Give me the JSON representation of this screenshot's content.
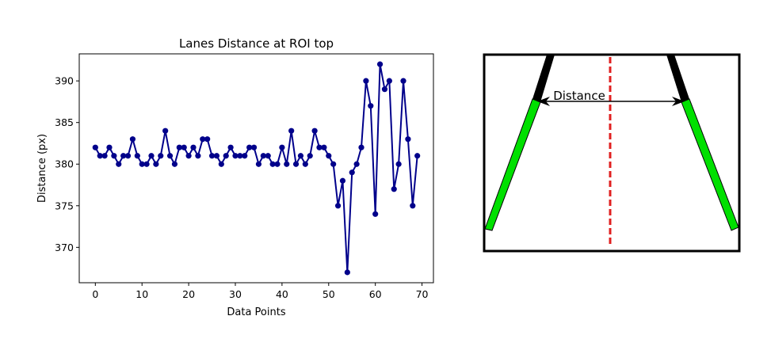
{
  "chart_data": [
    {
      "type": "line",
      "title": "Lanes Distance at ROI top",
      "xlabel": "Data Points",
      "ylabel": "Distance (px)",
      "xlim": [
        -3.45,
        72.45
      ],
      "ylim": [
        365.75,
        393.25
      ],
      "xticks": [
        0,
        10,
        20,
        30,
        40,
        50,
        60,
        70
      ],
      "yticks": [
        370,
        375,
        380,
        385,
        390
      ],
      "grid": false,
      "line_color": "#00008b",
      "marker": "circle",
      "series": [
        {
          "x": [
            0,
            1,
            2,
            3,
            4,
            5,
            6,
            7,
            8,
            9,
            10,
            11,
            12,
            13,
            14,
            15,
            16,
            17,
            18,
            19,
            20,
            21,
            22,
            23,
            24,
            25,
            26,
            27,
            28,
            29,
            30,
            31,
            32,
            33,
            34,
            35,
            36,
            37,
            38,
            39,
            40,
            41,
            42,
            43,
            44,
            45,
            46,
            47,
            48,
            49,
            50,
            51,
            52,
            53,
            54,
            55,
            56,
            57,
            58,
            59,
            60,
            61,
            62,
            63,
            64,
            65,
            66,
            67,
            68,
            69
          ],
          "values": [
            382,
            381,
            381,
            382,
            381,
            380,
            381,
            381,
            383,
            381,
            380,
            380,
            381,
            380,
            381,
            384,
            381,
            380,
            382,
            382,
            381,
            382,
            381,
            383,
            383,
            381,
            381,
            380,
            381,
            382,
            381,
            381,
            381,
            382,
            382,
            380,
            381,
            381,
            380,
            380,
            382,
            380,
            384,
            380,
            381,
            380,
            381,
            384,
            382,
            382,
            381,
            380,
            375,
            378,
            367,
            379,
            380,
            382,
            390,
            387,
            374,
            392,
            389,
            390,
            377,
            380,
            390,
            383,
            375,
            381
          ]
        }
      ]
    },
    {
      "type": "diagram",
      "label": "Distance",
      "colors": {
        "frame": "#000000",
        "centerline": "#e02020",
        "lane_lower": "#00e000",
        "lane_upper": "#000000",
        "arrow": "#000000"
      }
    }
  ]
}
